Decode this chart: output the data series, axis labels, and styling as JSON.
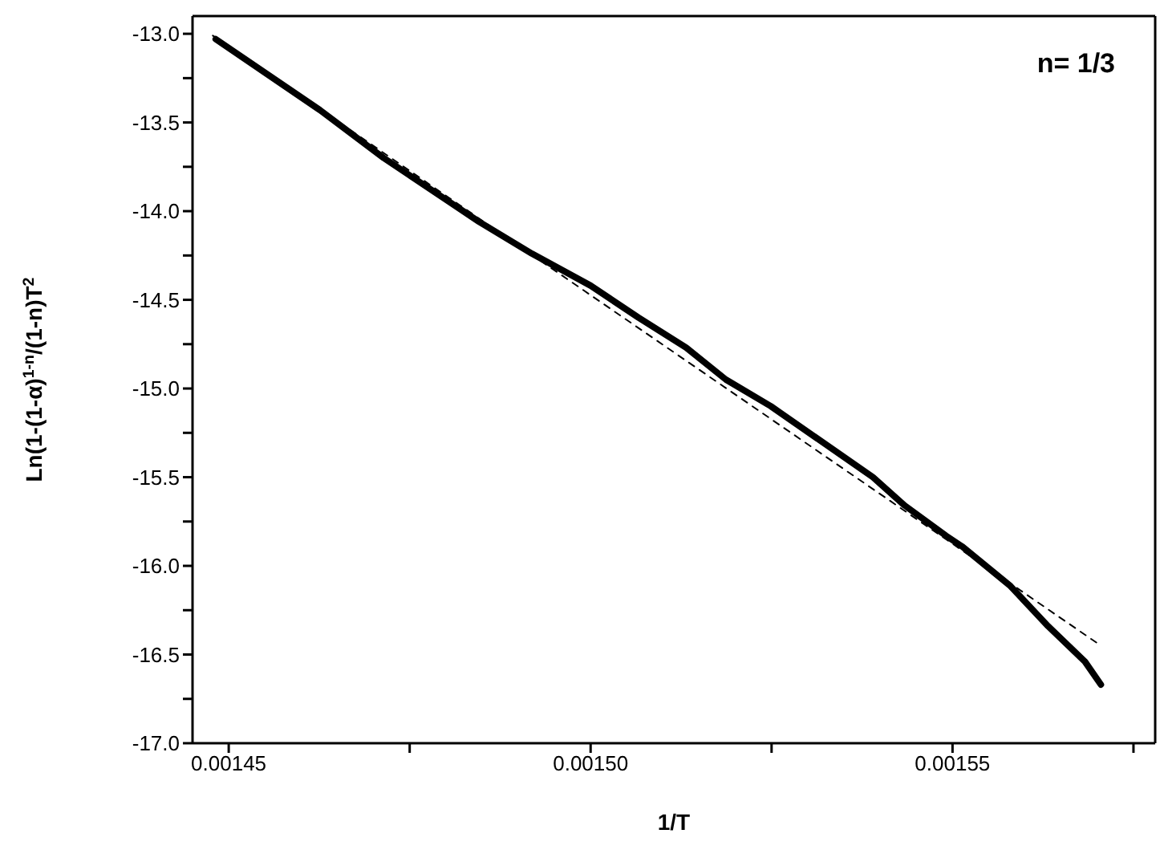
{
  "chart_data": {
    "type": "line",
    "xlabel": "1/T",
    "ylabel": "Ln(1-(1-α)$^{1-n}$/(1-n)T$^{2}$",
    "annotations": [
      "n= 1/3"
    ],
    "xlim": [
      0.001445,
      0.001578
    ],
    "ylim": [
      -17.0,
      -12.9
    ],
    "xticks": [
      0.00145,
      {
        "value": 0.001475,
        "label": null
      },
      {
        "value": 0.0015,
        "label": "0.00150"
      },
      {
        "value": 0.001525,
        "label": null
      },
      0.00155,
      {
        "value": 0.001575,
        "label": null
      }
    ],
    "yticks": [
      {
        "value": -17,
        "label": "-17.0"
      },
      {
        "value": -16.75,
        "label": null
      },
      -16.5,
      {
        "value": -16.25,
        "label": null
      },
      {
        "value": -16,
        "label": "-16.0"
      },
      {
        "value": -15.75,
        "label": null
      },
      -15.5,
      {
        "value": -15.25,
        "label": null
      },
      {
        "value": -15,
        "label": "-15.0"
      },
      {
        "value": -14.75,
        "label": null
      },
      -14.5,
      {
        "value": -14.25,
        "label": null
      },
      {
        "value": -14,
        "label": "-14.0"
      },
      {
        "value": -13.75,
        "label": null
      },
      -13.5,
      {
        "value": -13.25,
        "label": null
      },
      {
        "value": -13,
        "label": "-13.0"
      }
    ],
    "marker": "none",
    "series": [
      {
        "color": "#000000",
        "line_style": "solid",
        "x": [
          0.0014482,
          0.0014626,
          0.0014714,
          0.0014846,
          0.0014919,
          0.0015,
          0.0015066,
          0.0015132,
          0.0015187,
          0.0015249,
          0.001539,
          0.0015434,
          0.0015491,
          0.0015513,
          0.0015579,
          0.0015632,
          0.0015683,
          0.0015705
        ],
        "values": [
          -13.03,
          -13.43,
          -13.7,
          -14.06,
          -14.24,
          -14.42,
          -14.6,
          -14.77,
          -14.95,
          -15.1,
          -15.5,
          -15.66,
          -15.83,
          -15.89,
          -16.11,
          -16.34,
          -16.54,
          -16.67
        ]
      },
      {
        "color": "#000000",
        "line_style": "dashed",
        "x": [
          0.0014478,
          0.0015705
        ],
        "values": [
          -13.01,
          -16.45
        ]
      }
    ]
  }
}
